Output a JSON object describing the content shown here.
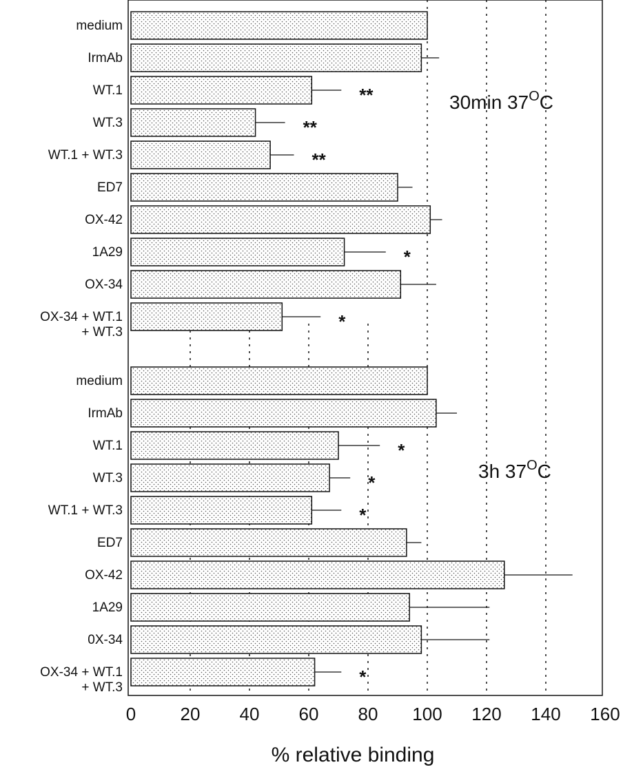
{
  "chart_data": {
    "type": "bar",
    "orientation": "horizontal",
    "xlabel": "% relative binding",
    "ylabel": "",
    "xlim": [
      0,
      160
    ],
    "x_ticks": [
      "0",
      "20",
      "40",
      "60",
      "80",
      "100",
      "120",
      "140",
      "160"
    ],
    "grid": "vertical dotted lines at 20-140",
    "fill_pattern": "dotted",
    "groups": [
      {
        "label": "30min 37°C",
        "label_parts": {
          "text": "30min 37",
          "sup": "O",
          "unit": "C"
        },
        "bars": [
          {
            "category": "medium",
            "value": 100,
            "error": 0,
            "sig": ""
          },
          {
            "category": "IrmAb",
            "value": 98,
            "error": 6,
            "sig": ""
          },
          {
            "category": "WT.1",
            "value": 61,
            "error": 10,
            "sig": "**"
          },
          {
            "category": "WT.3",
            "value": 42,
            "error": 10,
            "sig": "**"
          },
          {
            "category": "WT.1 + WT.3",
            "value": 47,
            "error": 8,
            "sig": "**"
          },
          {
            "category": "ED7",
            "value": 90,
            "error": 5,
            "sig": ""
          },
          {
            "category": "OX-42",
            "value": 101,
            "error": 4,
            "sig": ""
          },
          {
            "category": "1A29",
            "value": 72,
            "error": 14,
            "sig": "*"
          },
          {
            "category": "OX-34",
            "value": 91,
            "error": 12,
            "sig": ""
          },
          {
            "category": "OX-34 + WT.1\n+ WT.3",
            "value": 51,
            "error": 13,
            "sig": "*"
          }
        ]
      },
      {
        "label": "3h 37°C",
        "label_parts": {
          "text": "3h 37",
          "sup": "O",
          "unit": "C"
        },
        "bars": [
          {
            "category": "medium",
            "value": 100,
            "error": 0,
            "sig": ""
          },
          {
            "category": "IrmAb",
            "value": 103,
            "error": 7,
            "sig": ""
          },
          {
            "category": "WT.1",
            "value": 70,
            "error": 14,
            "sig": "*"
          },
          {
            "category": "WT.3",
            "value": 67,
            "error": 7,
            "sig": "*"
          },
          {
            "category": "WT.1 + WT.3",
            "value": 61,
            "error": 10,
            "sig": "*"
          },
          {
            "category": "ED7",
            "value": 93,
            "error": 5,
            "sig": ""
          },
          {
            "category": "OX-42",
            "value": 126,
            "error": 23,
            "sig": ""
          },
          {
            "category": "1A29",
            "value": 94,
            "error": 27,
            "sig": ""
          },
          {
            "category": "0X-34",
            "value": 98,
            "error": 23,
            "sig": ""
          },
          {
            "category": "OX-34 + WT.1\n+ WT.3",
            "value": 62,
            "error": 9,
            "sig": "*"
          }
        ]
      }
    ]
  }
}
